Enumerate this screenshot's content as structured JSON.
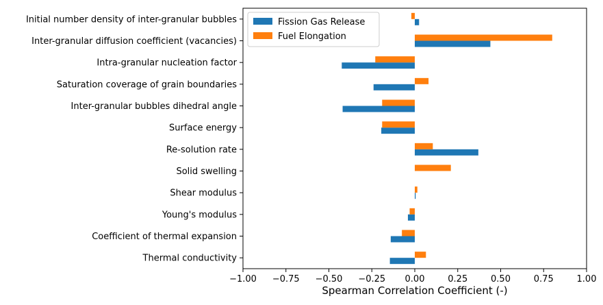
{
  "chart_data": {
    "type": "bar",
    "orientation": "horizontal",
    "xlabel": "Spearman Correlation Coefficient (-)",
    "ylabel": "",
    "xlim": [
      -1.0,
      1.0
    ],
    "xticks": [
      "−1.00",
      "−0.75",
      "−0.50",
      "−0.25",
      "0.00",
      "0.25",
      "0.50",
      "0.75",
      "1.00"
    ],
    "xtick_values": [
      -1.0,
      -0.75,
      -0.5,
      -0.25,
      0.0,
      0.25,
      0.5,
      0.75,
      1.0
    ],
    "grid": false,
    "legend_position": "top-left",
    "categories": [
      "Initial number density of inter-granular bubbles",
      "Inter-granular diffusion coefficient (vacancies)",
      "Intra-granular nucleation factor",
      "Saturation coverage of grain boundaries",
      "Inter-granular bubbles dihedral angle",
      "Surface energy",
      "Re-solution rate",
      "Solid swelling",
      "Shear modulus",
      "Young's modulus",
      "Coefficient of thermal expansion",
      "Thermal conductivity"
    ],
    "series": [
      {
        "name": "Fission Gas Release",
        "color": "#1f77b4",
        "values": [
          0.025,
          0.44,
          -0.425,
          -0.24,
          -0.42,
          -0.195,
          0.37,
          0.0,
          0.005,
          -0.04,
          -0.14,
          -0.145
        ]
      },
      {
        "name": "Fuel Elongation",
        "color": "#ff7f0e",
        "values": [
          -0.02,
          0.8,
          -0.23,
          0.08,
          -0.19,
          -0.19,
          0.105,
          0.21,
          0.015,
          -0.03,
          -0.075,
          0.065
        ]
      }
    ]
  }
}
